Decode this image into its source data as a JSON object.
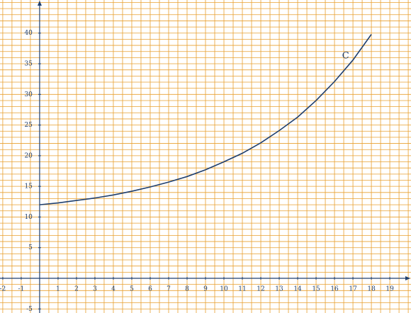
{
  "chart_data": {
    "type": "line",
    "x": [
      0,
      1,
      2,
      3,
      4,
      5,
      6,
      7,
      8,
      9,
      10,
      11,
      12,
      13,
      14,
      15,
      16,
      17,
      18
    ],
    "series": [
      {
        "name": "C",
        "color": "#1f3f6e",
        "values": [
          12.0,
          12.3,
          12.7,
          13.1,
          13.6,
          14.2,
          14.9,
          15.7,
          16.6,
          17.7,
          19.0,
          20.4,
          22.1,
          24.1,
          26.3,
          29.0,
          32.1,
          35.6,
          39.8
        ]
      }
    ],
    "annotations": [
      {
        "text": "C",
        "x": 16.6,
        "y": 36.3
      }
    ],
    "xlim": [
      -2.15,
      20.15
    ],
    "ylim": [
      -5.66,
      45.4
    ],
    "xticks": [
      -2,
      -1,
      1,
      2,
      3,
      4,
      5,
      6,
      7,
      8,
      9,
      10,
      11,
      12,
      13,
      14,
      15,
      16,
      17,
      18,
      19
    ],
    "yticks": [
      -5,
      5,
      10,
      15,
      20,
      25,
      30,
      35,
      40
    ],
    "grid": true,
    "grid_color": "#e8a030",
    "minor_grid": {
      "x": 0.5,
      "y": 1
    }
  }
}
